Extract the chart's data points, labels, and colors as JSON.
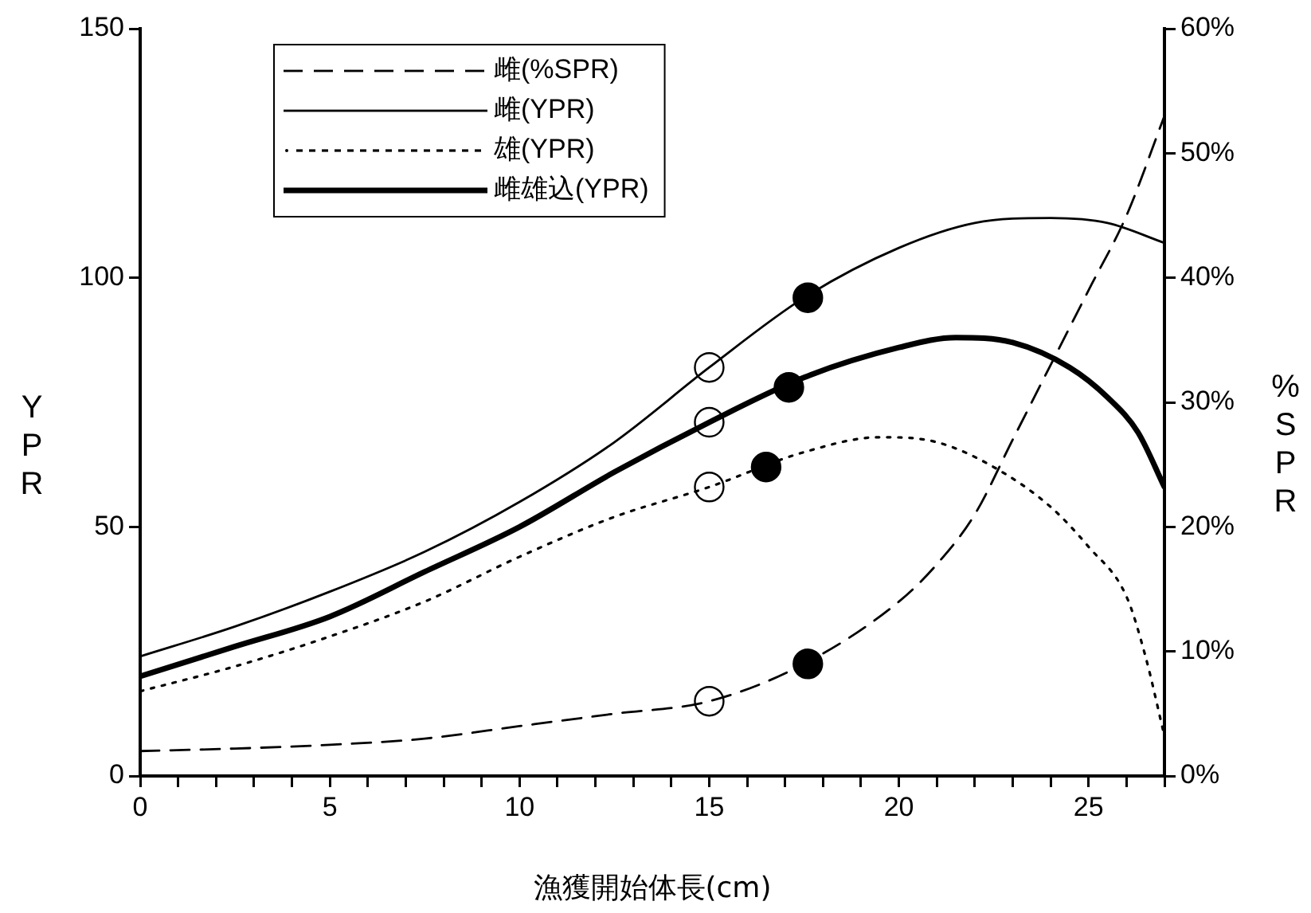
{
  "chart_data": {
    "type": "line",
    "xlabel": "漁獲開始体長(cm)",
    "ylabel": "YPR",
    "y2label": "%SPR",
    "xlim": [
      0,
      27
    ],
    "xticks": [
      0,
      {
        "value": 1,
        "label": null
      },
      {
        "value": 2,
        "label": null
      },
      {
        "value": 3,
        "label": null
      },
      {
        "value": 4,
        "label": null
      },
      5,
      {
        "value": 6,
        "label": null
      },
      {
        "value": 7,
        "label": null
      },
      {
        "value": 8,
        "label": null
      },
      {
        "value": 9,
        "label": null
      },
      10,
      {
        "value": 11,
        "label": null
      },
      {
        "value": 12,
        "label": null
      },
      {
        "value": 13,
        "label": null
      },
      {
        "value": 14,
        "label": null
      },
      15,
      {
        "value": 16,
        "label": null
      },
      {
        "value": 17,
        "label": null
      },
      {
        "value": 18,
        "label": null
      },
      {
        "value": 19,
        "label": null
      },
      20,
      {
        "value": 21,
        "label": null
      },
      {
        "value": 22,
        "label": null
      },
      {
        "value": 23,
        "label": null
      },
      {
        "value": 24,
        "label": null
      },
      25,
      {
        "value": 26,
        "label": null
      },
      {
        "value": 27,
        "label": null
      }
    ],
    "ylim": [
      0,
      150
    ],
    "yticks": [
      0,
      50,
      100,
      150
    ],
    "y2lim": [
      0,
      60
    ],
    "y2ticks": [
      {
        "value": 0,
        "label": "0%"
      },
      {
        "value": 10,
        "label": "10%"
      },
      {
        "value": 20,
        "label": "20%"
      },
      {
        "value": 30,
        "label": "30%"
      },
      {
        "value": 40,
        "label": "40%"
      },
      {
        "value": 50,
        "label": "50%"
      },
      {
        "value": 60,
        "label": "60%"
      }
    ],
    "grid": false,
    "legend": "top left",
    "marker": "none",
    "series": [
      {
        "name": "雌(%SPR)",
        "color": "#000000",
        "line_style": "dashed",
        "axis": "y2",
        "x": [
          0,
          2.5,
          5,
          7.5,
          10,
          12.5,
          15,
          17.5,
          20,
          21,
          22,
          23,
          24,
          25,
          26,
          27
        ],
        "values": [
          2,
          2.2,
          2.5,
          3,
          4,
          5,
          6,
          9,
          14,
          17,
          21,
          27,
          33,
          39,
          45,
          53
        ]
      },
      {
        "name": "雌(YPR)",
        "color": "#000000",
        "line_style": "solid",
        "x": [
          0,
          2.5,
          5,
          7.5,
          10,
          12.5,
          15,
          17.5,
          20,
          22,
          24,
          25.5,
          27
        ],
        "values": [
          24,
          30,
          37,
          45,
          55,
          67,
          82,
          96,
          106,
          111,
          112,
          111,
          107
        ]
      },
      {
        "name": "雄(YPR)",
        "color": "#000000",
        "line_style": "dotted",
        "x": [
          0,
          2.5,
          5,
          7.5,
          10,
          12.5,
          15,
          17.5,
          19.5,
          21,
          22.5,
          24,
          25,
          26,
          26.5,
          27
        ],
        "values": [
          17,
          22,
          28,
          35,
          44,
          52,
          58,
          65,
          68,
          67,
          62,
          54,
          46,
          36,
          24,
          8
        ]
      },
      {
        "name": "雌雄込(YPR)",
        "color": "#000000",
        "line_style": "solid",
        "x": [
          0,
          2.5,
          5,
          7.5,
          10,
          12.5,
          15,
          17.5,
          20,
          21.5,
          23,
          24.5,
          25.5,
          26.3,
          27
        ],
        "values": [
          20,
          26,
          32,
          41,
          50,
          61,
          71,
          80,
          86,
          88,
          87,
          82,
          76,
          69,
          58
        ]
      },
      {
        "type": "scatter",
        "color": "#ffffff",
        "marker": "circle",
        "x": [
          15,
          15,
          15
        ],
        "values": [
          82,
          71,
          58
        ]
      },
      {
        "type": "scatter",
        "color": "#ffffff",
        "marker": "circle",
        "axis": "y2",
        "x": [
          15
        ],
        "values": [
          6
        ]
      },
      {
        "type": "scatter",
        "color": "#000000",
        "marker": "circle",
        "x": [
          17.6,
          17.1,
          16.5
        ],
        "values": [
          96,
          78,
          62
        ]
      },
      {
        "type": "scatter",
        "color": "#000000",
        "marker": "circle",
        "axis": "y2",
        "x": [
          17.6
        ],
        "values": [
          9
        ]
      }
    ]
  }
}
